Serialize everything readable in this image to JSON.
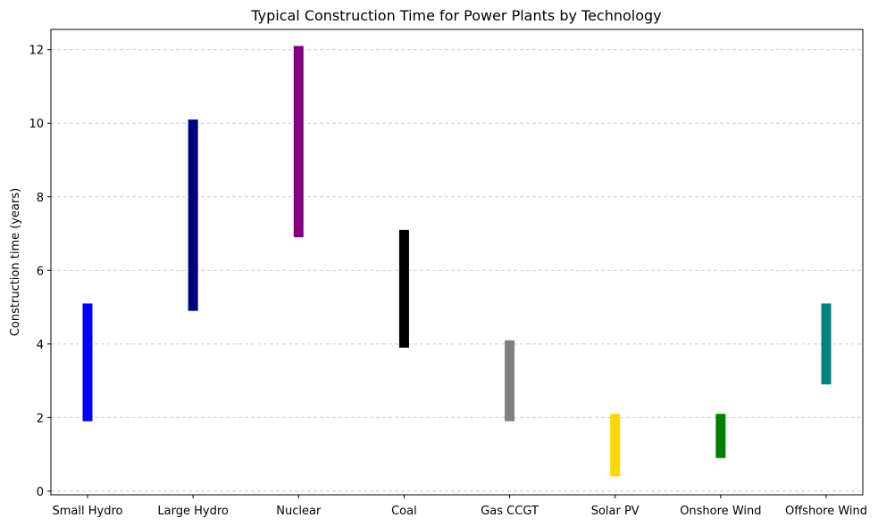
{
  "chart_data": {
    "type": "bar",
    "title": "Typical Construction Time for Power Plants by Technology",
    "xlabel": "",
    "ylabel": "Construction time (years)",
    "ylim": [
      -0.1,
      12.55
    ],
    "yticks": [
      0,
      2,
      4,
      6,
      8,
      10,
      12
    ],
    "grid": "y-dashed",
    "categories": [
      "Small Hydro",
      "Large Hydro",
      "Nuclear",
      "Coal",
      "Gas CCGT",
      "Solar PV",
      "Onshore Wind",
      "Offshore Wind"
    ],
    "ranges": [
      {
        "min": 1.9,
        "max": 5.1
      },
      {
        "min": 4.9,
        "max": 10.1
      },
      {
        "min": 6.9,
        "max": 12.1
      },
      {
        "min": 3.9,
        "max": 7.1
      },
      {
        "min": 1.9,
        "max": 4.1
      },
      {
        "min": 0.4,
        "max": 2.1
      },
      {
        "min": 0.9,
        "max": 2.1
      },
      {
        "min": 2.9,
        "max": 5.1
      }
    ],
    "colors": [
      "#0000ff",
      "#000080",
      "#800080",
      "#000000",
      "#808080",
      "#ffd700",
      "#008000",
      "#008080"
    ]
  }
}
